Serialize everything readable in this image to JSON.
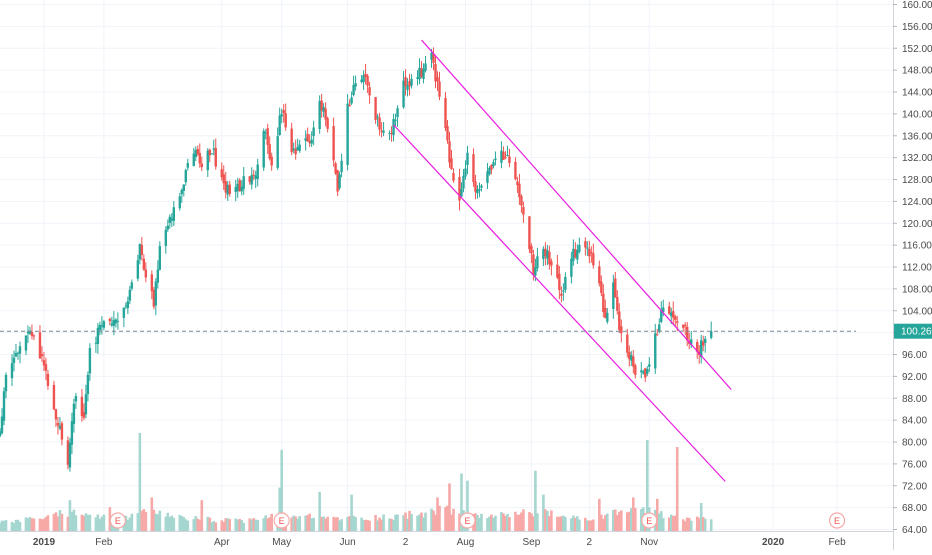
{
  "chart_data": {
    "type": "candlestick",
    "y_axis": {
      "position": "right",
      "range": [
        64.0,
        160.0
      ],
      "ticks": [
        "64.00",
        "68.00",
        "72.00",
        "76.00",
        "80.00",
        "84.00",
        "88.00",
        "92.00",
        "96.00",
        "100.00",
        "104.00",
        "108.00",
        "112.00",
        "116.00",
        "120.00",
        "124.00",
        "128.00",
        "132.00",
        "136.00",
        "140.00",
        "144.00",
        "148.00",
        "152.00",
        "156.00",
        "160.00"
      ]
    },
    "x_axis": {
      "range": [
        "2018-12-11",
        "2020-03-02"
      ],
      "ticks": [
        {
          "label": "2019",
          "date": "2019-01-02",
          "bold": true
        },
        {
          "label": "Feb",
          "date": "2019-02-01",
          "bold": false
        },
        {
          "label": "Apr",
          "date": "2019-04-01",
          "bold": false
        },
        {
          "label": "May",
          "date": "2019-05-01",
          "bold": false
        },
        {
          "label": "Jun",
          "date": "2019-06-03",
          "bold": false
        },
        {
          "label": "2",
          "date": "2019-07-02",
          "bold": false
        },
        {
          "label": "Aug",
          "date": "2019-08-01",
          "bold": false
        },
        {
          "label": "Sep",
          "date": "2019-09-03",
          "bold": false
        },
        {
          "label": "2",
          "date": "2019-10-02",
          "bold": false
        },
        {
          "label": "Nov",
          "date": "2019-11-01",
          "bold": false
        },
        {
          "label": "2020",
          "date": "2020-01-02",
          "bold": true
        },
        {
          "label": "Feb",
          "date": "2020-02-03",
          "bold": false
        }
      ]
    },
    "last_price": {
      "value": 100.26,
      "label": "100.26"
    },
    "grid": true,
    "colors": {
      "up": "#26a69a",
      "down": "#ef5350",
      "volume_up": "#a5d6cf",
      "volume_down": "#f7a9a7",
      "channel": "#e91ee0",
      "price_line": "#26a69a",
      "grid": "#f0f3fa"
    },
    "close_path": [
      [
        "2018-12-11",
        82
      ],
      [
        "2018-12-14",
        91
      ],
      [
        "2018-12-20",
        97
      ],
      [
        "2018-12-26",
        100
      ],
      [
        "2018-12-31",
        96
      ],
      [
        "2019-01-04",
        91
      ],
      [
        "2019-01-09",
        84
      ],
      [
        "2019-01-14",
        77
      ],
      [
        "2019-01-17",
        88
      ],
      [
        "2019-01-22",
        84
      ],
      [
        "2019-01-25",
        96
      ],
      [
        "2019-01-30",
        101
      ],
      [
        "2019-02-04",
        103
      ],
      [
        "2019-02-08",
        101
      ],
      [
        "2019-02-13",
        107
      ],
      [
        "2019-02-19",
        116
      ],
      [
        "2019-02-22",
        111
      ],
      [
        "2019-02-26",
        106
      ],
      [
        "2019-03-01",
        115
      ],
      [
        "2019-03-06",
        120
      ],
      [
        "2019-03-12",
        127
      ],
      [
        "2019-03-18",
        134
      ],
      [
        "2019-03-22",
        131
      ],
      [
        "2019-03-27",
        134
      ],
      [
        "2019-04-02",
        127
      ],
      [
        "2019-04-08",
        126
      ],
      [
        "2019-04-12",
        128
      ],
      [
        "2019-04-17",
        128
      ],
      [
        "2019-04-22",
        137
      ],
      [
        "2019-04-26",
        131
      ],
      [
        "2019-05-01",
        141
      ],
      [
        "2019-05-06",
        132
      ],
      [
        "2019-05-10",
        135
      ],
      [
        "2019-05-15",
        134
      ],
      [
        "2019-05-20",
        143
      ],
      [
        "2019-05-24",
        137
      ],
      [
        "2019-05-29",
        127
      ],
      [
        "2019-06-03",
        141
      ],
      [
        "2019-06-07",
        145
      ],
      [
        "2019-06-12",
        147
      ],
      [
        "2019-06-17",
        139
      ],
      [
        "2019-06-21",
        136
      ],
      [
        "2019-06-26",
        138
      ],
      [
        "2019-07-01",
        145
      ],
      [
        "2019-07-05",
        146
      ],
      [
        "2019-07-10",
        148
      ],
      [
        "2019-07-15",
        151
      ],
      [
        "2019-07-19",
        143
      ],
      [
        "2019-07-24",
        132
      ],
      [
        "2019-07-29",
        123
      ],
      [
        "2019-08-02",
        133
      ],
      [
        "2019-08-07",
        125
      ],
      [
        "2019-08-12",
        129
      ],
      [
        "2019-08-16",
        133
      ],
      [
        "2019-08-21",
        132
      ],
      [
        "2019-08-26",
        128
      ],
      [
        "2019-08-30",
        122
      ],
      [
        "2019-09-04",
        111
      ],
      [
        "2019-09-09",
        116
      ],
      [
        "2019-09-13",
        112
      ],
      [
        "2019-09-18",
        107
      ],
      [
        "2019-09-23",
        114
      ],
      [
        "2019-09-27",
        116
      ],
      [
        "2019-10-02",
        115
      ],
      [
        "2019-10-07",
        108
      ],
      [
        "2019-10-10",
        103
      ],
      [
        "2019-10-14",
        108
      ],
      [
        "2019-10-17",
        101
      ],
      [
        "2019-10-22",
        96
      ],
      [
        "2019-10-25",
        92
      ],
      [
        "2019-10-30",
        93
      ],
      [
        "2019-11-04",
        99
      ],
      [
        "2019-11-08",
        104
      ],
      [
        "2019-11-13",
        103
      ],
      [
        "2019-11-18",
        101
      ],
      [
        "2019-11-21",
        98
      ],
      [
        "2019-11-26",
        97
      ],
      [
        "2019-12-02",
        100.26
      ]
    ],
    "volume_path": [
      [
        "2018-12-11",
        0.6
      ],
      [
        "2018-12-31",
        0.9
      ],
      [
        "2019-01-16",
        1.4
      ],
      [
        "2019-02-07",
        0.8
      ],
      [
        "2019-02-22",
        1.3
      ],
      [
        "2019-03-15",
        0.9
      ],
      [
        "2019-04-10",
        0.7
      ],
      [
        "2019-04-30",
        1.1
      ],
      [
        "2019-05-31",
        0.9
      ],
      [
        "2019-06-25",
        1.0
      ],
      [
        "2019-07-22",
        1.5
      ],
      [
        "2019-08-15",
        1.0
      ],
      [
        "2019-09-03",
        1.4
      ],
      [
        "2019-09-30",
        0.8
      ],
      [
        "2019-10-25",
        1.6
      ],
      [
        "2019-11-14",
        0.9
      ],
      [
        "2019-12-02",
        0.8
      ]
    ],
    "volume_spikes": [
      {
        "date": "2019-01-15",
        "rel": 2.2
      },
      {
        "date": "2019-02-04",
        "rel": 1.7
      },
      {
        "date": "2019-02-19",
        "rel": 7.0
      },
      {
        "date": "2019-02-25",
        "rel": 2.4
      },
      {
        "date": "2019-03-22",
        "rel": 2.2
      },
      {
        "date": "2019-04-30",
        "rel": 3.1
      },
      {
        "date": "2019-05-01",
        "rel": 5.8
      },
      {
        "date": "2019-05-20",
        "rel": 2.8
      },
      {
        "date": "2019-06-05",
        "rel": 2.6
      },
      {
        "date": "2019-07-18",
        "rel": 2.4
      },
      {
        "date": "2019-07-24",
        "rel": 3.4
      },
      {
        "date": "2019-07-30",
        "rel": 4.1
      },
      {
        "date": "2019-08-02",
        "rel": 3.6
      },
      {
        "date": "2019-09-05",
        "rel": 4.3
      },
      {
        "date": "2019-09-09",
        "rel": 2.6
      },
      {
        "date": "2019-10-07",
        "rel": 2.3
      },
      {
        "date": "2019-10-24",
        "rel": 2.4
      },
      {
        "date": "2019-10-31",
        "rel": 6.5
      },
      {
        "date": "2019-11-05",
        "rel": 2.3
      },
      {
        "date": "2019-11-15",
        "rel": 6.0
      },
      {
        "date": "2019-11-27",
        "rel": 2.0
      }
    ],
    "earnings_markers": [
      {
        "date": "2019-02-08",
        "label": "E"
      },
      {
        "date": "2019-05-01",
        "label": "E"
      },
      {
        "date": "2019-08-02",
        "label": "E"
      },
      {
        "date": "2019-11-01",
        "label": "E"
      },
      {
        "date": "2020-02-03",
        "label": "E"
      }
    ],
    "channel_upper": [
      [
        "2019-07-10",
        153.5
      ],
      [
        "2019-12-12",
        89.6
      ]
    ],
    "channel_lower": [
      [
        "2019-06-26",
        138.0
      ],
      [
        "2019-12-09",
        72.8
      ]
    ]
  }
}
